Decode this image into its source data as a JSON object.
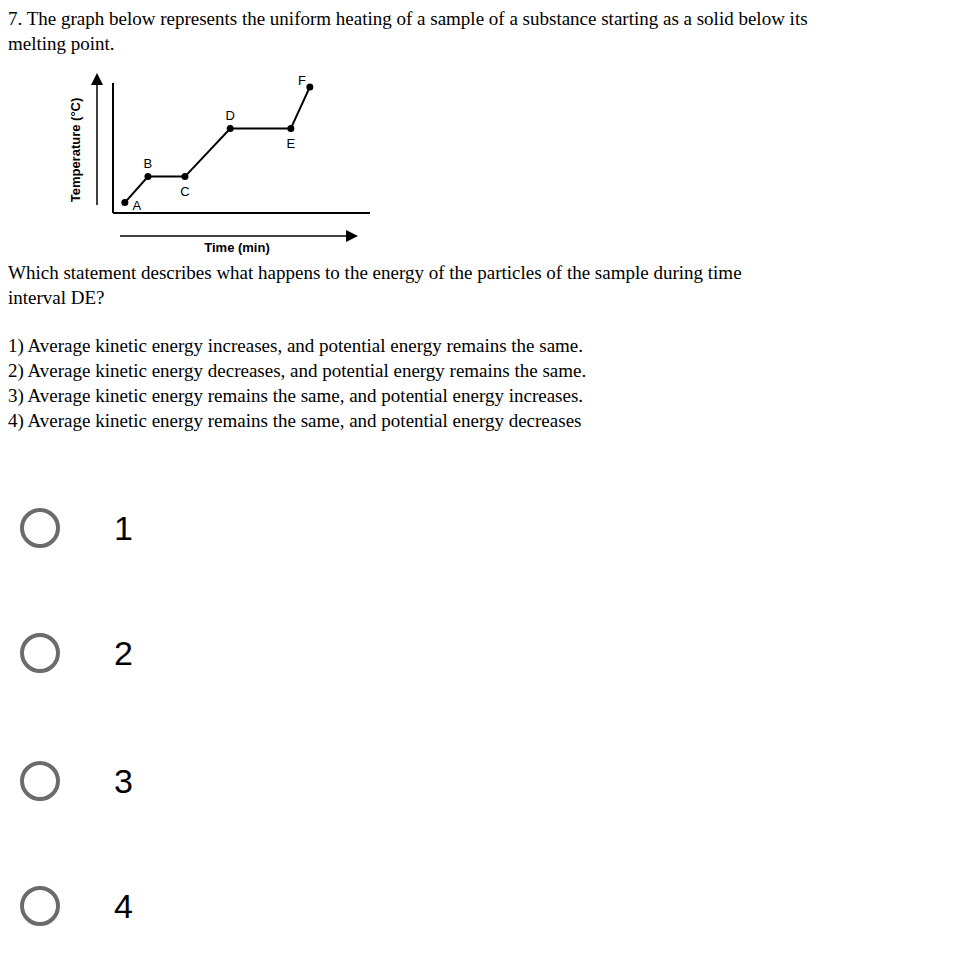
{
  "question": {
    "intro": [
      "7. The graph below represents the uniform heating of a sample of a substance starting as a solid below its",
      "melting point."
    ],
    "prompt": [
      "Which statement describes what happens to the energy of the particles of the sample during time",
      "interval DE?"
    ],
    "options": [
      "1) Average kinetic energy increases, and potential energy remains the same.",
      "2) Average kinetic energy decreases, and potential energy remains the same.",
      "3) Average kinetic energy remains the same, and potential energy increases.",
      "4) Average kinetic energy remains the same, and potential energy decreases"
    ],
    "choices": [
      "1",
      "2",
      "3",
      "4"
    ]
  },
  "chart_data": {
    "type": "line",
    "x_label": "Time (min)",
    "y_label": "Temperature (°C)",
    "x": [
      2.3,
      6.8,
      14,
      22.8,
      34.6,
      38.3
    ],
    "values": [
      8,
      28,
      28,
      65,
      65,
      97
    ],
    "labels": [
      "A",
      "B",
      "C",
      "D",
      "E",
      "F"
    ],
    "xlim": [
      0,
      50
    ],
    "ylim": [
      0,
      100
    ],
    "tick_labels": false,
    "marker": "circle",
    "color": "#000000"
  }
}
